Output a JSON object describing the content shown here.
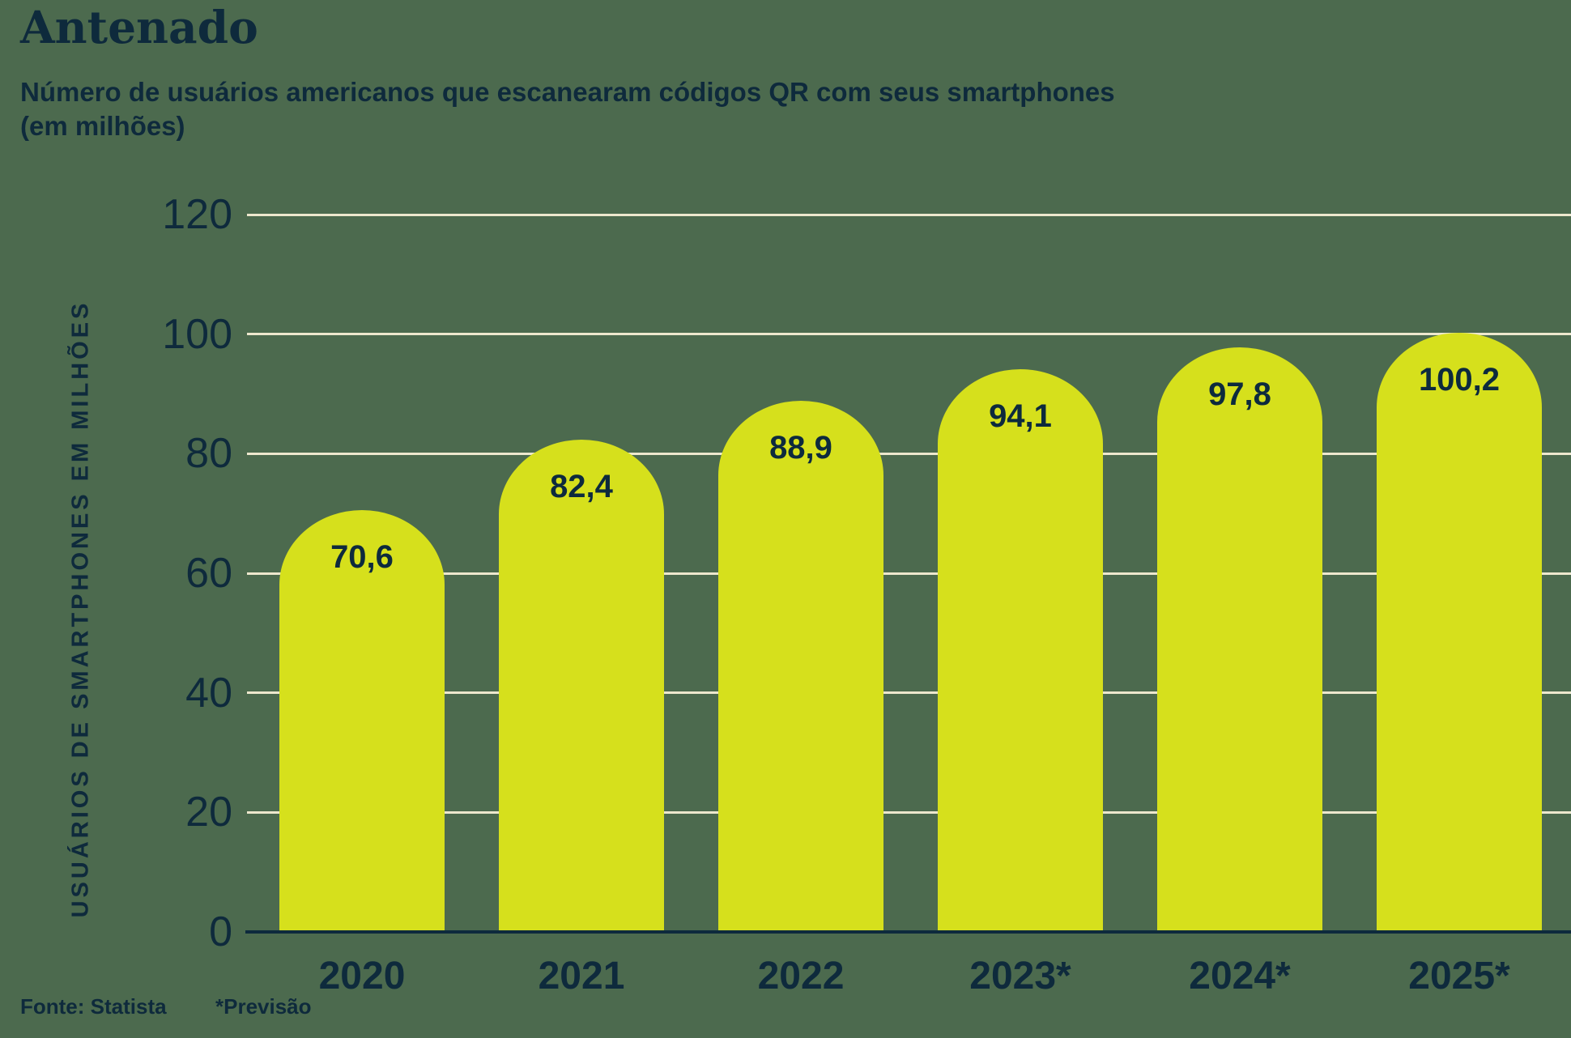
{
  "header": {
    "title": "Antenado",
    "subtitle": "Número de usuários americanos que escanearam códigos QR com seus smartphones\n(em milhões)"
  },
  "chart_data": {
    "type": "bar",
    "title": "Antenado",
    "subtitle": "Número de usuários americanos que escanearam códigos QR com seus smartphones (em milhões)",
    "categories": [
      "2020",
      "2021",
      "2022",
      "2023*",
      "2024*",
      "2025*"
    ],
    "values": [
      70.6,
      82.4,
      88.9,
      94.1,
      97.8,
      100.2
    ],
    "value_labels": [
      "70,6",
      "82,4",
      "88,9",
      "94,1",
      "97,8",
      "100,2"
    ],
    "xlabel": "",
    "ylabel": "USUÁRIOS DE SMARTPHONES EM MILHÕES",
    "ylim": [
      0,
      120
    ],
    "yticks": [
      0,
      20,
      40,
      60,
      80,
      100,
      120
    ],
    "grid": "horizontal",
    "legend": "none",
    "colors": {
      "background": "#4c6a4e",
      "bar": "#d6e01c",
      "gridline": "#ede7cd",
      "axis": "#0d2a3d",
      "text": "#0e2a3c"
    }
  },
  "footer": {
    "source": "Fonte: Statista",
    "note": "*Previsão"
  }
}
